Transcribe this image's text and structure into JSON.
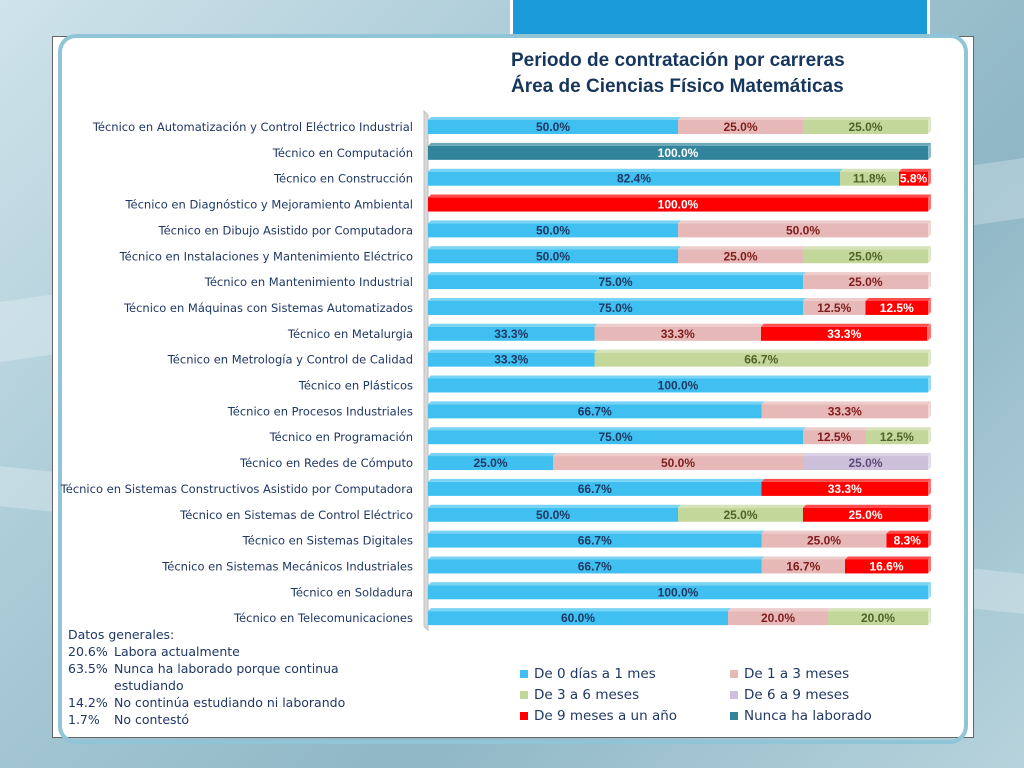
{
  "chart_data": {
    "type": "bar",
    "orientation": "horizontal",
    "stacked": true,
    "percent": true,
    "title": [
      "Periodo de contratación por carreras",
      "Área de Ciencias Físico Matemáticas"
    ],
    "xlim": [
      0,
      100
    ],
    "legend_position": "bottom-right",
    "series": [
      {
        "name": "De 0 días a 1 mes",
        "color": "#3fc0f0"
      },
      {
        "name": "De 1 a 3 meses",
        "color": "#e6b8b7"
      },
      {
        "name": "De 3 a 6 meses",
        "color": "#c4d79b"
      },
      {
        "name": "De 6 a 9 meses",
        "color": "#ccc0da"
      },
      {
        "name": "De 9 meses  a un año",
        "color": "#ff0000"
      },
      {
        "name": "Nunca ha laborado",
        "color": "#31849b"
      }
    ],
    "categories": [
      {
        "label": "Técnico en Automatización y Control Eléctrico Industrial",
        "values": [
          50.0,
          25.0,
          25.0,
          0,
          0,
          0
        ],
        "labels": [
          "50.0%",
          "25.0%",
          "25.0%",
          "",
          "",
          ""
        ]
      },
      {
        "label": "Técnico en Computación",
        "values": [
          0,
          0,
          0,
          0,
          0,
          100.0
        ],
        "labels": [
          "",
          "",
          "",
          "",
          "",
          "100.0%"
        ]
      },
      {
        "label": "Técnico en Construcción",
        "values": [
          82.4,
          0,
          11.8,
          0,
          5.8,
          0
        ],
        "labels": [
          "82.4%",
          "",
          "11.8%",
          "",
          "5.8%",
          ""
        ]
      },
      {
        "label": "Técnico en Diagnóstico y Mejoramiento Ambiental",
        "values": [
          0,
          0,
          0,
          0,
          100.0,
          0
        ],
        "labels": [
          "",
          "",
          "",
          "",
          "100.0%",
          ""
        ]
      },
      {
        "label": "Técnico en Dibujo Asistido por Computadora",
        "values": [
          50.0,
          50.0,
          0,
          0,
          0,
          0
        ],
        "labels": [
          "50.0%",
          "50.0%",
          "",
          "",
          "",
          ""
        ]
      },
      {
        "label": "Técnico en Instalaciones y Mantenimiento Eléctrico",
        "values": [
          50.0,
          25.0,
          25.0,
          0,
          0,
          0
        ],
        "labels": [
          "50.0%",
          "25.0%",
          "25.0%",
          "",
          "",
          ""
        ]
      },
      {
        "label": "Técnico en Mantenimiento Industrial",
        "values": [
          75.0,
          25.0,
          0,
          0,
          0,
          0
        ],
        "labels": [
          "75.0%",
          "25.0%",
          "",
          "",
          "",
          ""
        ]
      },
      {
        "label": "Técnico en Máquinas con Sistemas Automatizados",
        "values": [
          75.0,
          12.5,
          0,
          0,
          12.5,
          0
        ],
        "labels": [
          "75.0%",
          "12.5%",
          "",
          "",
          "12.5%",
          ""
        ]
      },
      {
        "label": "Técnico en Metalurgia",
        "values": [
          33.3,
          33.3,
          0,
          0,
          33.3,
          0
        ],
        "labels": [
          "33.3%",
          "33.3%",
          "",
          "",
          "33.3%",
          ""
        ]
      },
      {
        "label": "Técnico en Metrología y Control de Calidad",
        "values": [
          33.3,
          0,
          66.7,
          0,
          0,
          0
        ],
        "labels": [
          "33.3%",
          "",
          "66.7%",
          "",
          "",
          ""
        ]
      },
      {
        "label": "Técnico en Plásticos",
        "values": [
          100.0,
          0,
          0,
          0,
          0,
          0
        ],
        "labels": [
          "100.0%",
          "",
          "",
          "",
          "",
          ""
        ]
      },
      {
        "label": "Técnico en Procesos Industriales",
        "values": [
          66.7,
          33.3,
          0,
          0,
          0,
          0
        ],
        "labels": [
          "66.7%",
          "33.3%",
          "",
          "",
          "",
          ""
        ]
      },
      {
        "label": "Técnico en Programación",
        "values": [
          75.0,
          12.5,
          12.5,
          0,
          0,
          0
        ],
        "labels": [
          "75.0%",
          "12.5%",
          "12.5%",
          "",
          "",
          ""
        ]
      },
      {
        "label": "Técnico en Redes de Cómputo",
        "values": [
          25.0,
          50.0,
          0,
          25.0,
          0,
          0
        ],
        "labels": [
          "25.0%",
          "50.0%",
          "",
          "25.0%",
          "",
          ""
        ]
      },
      {
        "label": "Técnico en Sistemas Constructivos Asistido por Computadora",
        "values": [
          66.7,
          0,
          0,
          0,
          33.3,
          0
        ],
        "labels": [
          "66.7%",
          "",
          "",
          "",
          "33.3%",
          ""
        ]
      },
      {
        "label": "Técnico en Sistemas de Control Eléctrico",
        "values": [
          50.0,
          0,
          25.0,
          0,
          25.0,
          0
        ],
        "labels": [
          "50.0%",
          "",
          "25.0%",
          "",
          "25.0%",
          ""
        ]
      },
      {
        "label": "Técnico en Sistemas Digitales",
        "values": [
          66.7,
          25.0,
          0,
          0,
          8.3,
          0
        ],
        "labels": [
          "66.7%",
          "25.0%",
          "",
          "",
          "8.3%",
          ""
        ]
      },
      {
        "label": "Técnico en Sistemas Mecánicos Industriales",
        "values": [
          66.7,
          16.7,
          0,
          0,
          16.6,
          0
        ],
        "labels": [
          "66.7%",
          "16.7%",
          "",
          "",
          "16.6%",
          ""
        ]
      },
      {
        "label": "Técnico en Soldadura",
        "values": [
          100.0,
          0,
          0,
          0,
          0,
          0
        ],
        "labels": [
          "100.0%",
          "",
          "",
          "",
          "",
          ""
        ]
      },
      {
        "label": "Técnico en Telecomunicaciones",
        "values": [
          60.0,
          20.0,
          20.0,
          0,
          0,
          0
        ],
        "labels": [
          "60.0%",
          "20.0%",
          "20.0%",
          "",
          "",
          ""
        ]
      }
    ]
  },
  "general": {
    "heading": "Datos generales:",
    "rows": [
      {
        "pct": "20.6%",
        "text": "Labora actualmente"
      },
      {
        "pct": "63.5%",
        "text": "Nunca ha laborado porque continua estudiando"
      },
      {
        "pct": "14.2%",
        "text": "No continúa estudiando ni laborando"
      },
      {
        "pct": "1.7%",
        "text": "No contestó"
      }
    ]
  }
}
